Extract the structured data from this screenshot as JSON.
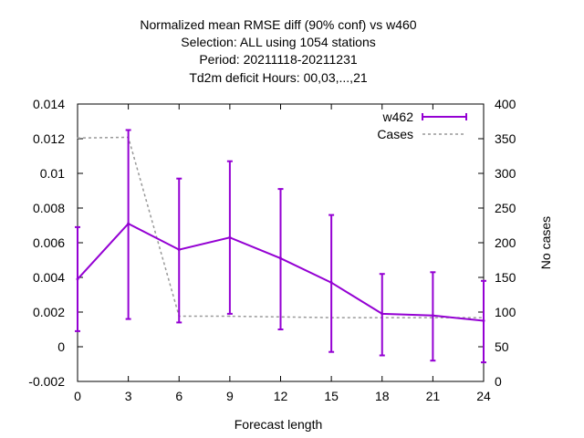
{
  "chart_data": {
    "type": "line",
    "title_lines": [
      "Normalized mean RMSE diff (90% conf) vs w460",
      "Selection: ALL using  1054 stations",
      "Period: 20211118-20211231",
      "Td2m deficit   Hours:  00,03,...,21"
    ],
    "xlabel": "Forecast length",
    "ylabel": "",
    "y2label": "No cases",
    "xlim": [
      0,
      24
    ],
    "ylim": [
      -0.002,
      0.014
    ],
    "y2lim": [
      0,
      400
    ],
    "x_ticks": [
      0,
      3,
      6,
      9,
      12,
      15,
      18,
      21,
      24
    ],
    "y_ticks": [
      "-0.002",
      "0",
      "0.002",
      "0.004",
      "0.006",
      "0.008",
      "0.01",
      "0.012",
      "0.014"
    ],
    "y2_ticks": [
      "0",
      "50",
      "100",
      "150",
      "200",
      "250",
      "300",
      "350",
      "400"
    ],
    "legend_position": "top-right",
    "grid": false,
    "series": [
      {
        "name": "w462",
        "color": "#9400d3",
        "style": "line-errorbars",
        "axis": "y",
        "x": [
          0,
          3,
          6,
          9,
          12,
          15,
          18,
          21,
          24
        ],
        "y": [
          0.0039,
          0.0071,
          0.0056,
          0.0063,
          0.0051,
          0.0037,
          0.0019,
          0.0018,
          0.0015
        ],
        "err_low": [
          0.0009,
          0.0016,
          0.0014,
          0.0019,
          0.001,
          -0.0003,
          -0.0005,
          -0.0008,
          -0.0009
        ],
        "err_high": [
          0.0069,
          0.0125,
          0.0097,
          0.0107,
          0.0091,
          0.0076,
          0.0042,
          0.0043,
          0.0038
        ]
      },
      {
        "name": "Cases",
        "color": "#999999",
        "style": "dashed",
        "axis": "y2",
        "x": [
          0,
          3,
          6,
          9,
          12,
          15,
          18,
          21,
          24
        ],
        "y": [
          351,
          352,
          94,
          94,
          93,
          92,
          92,
          92,
          92
        ]
      }
    ]
  }
}
